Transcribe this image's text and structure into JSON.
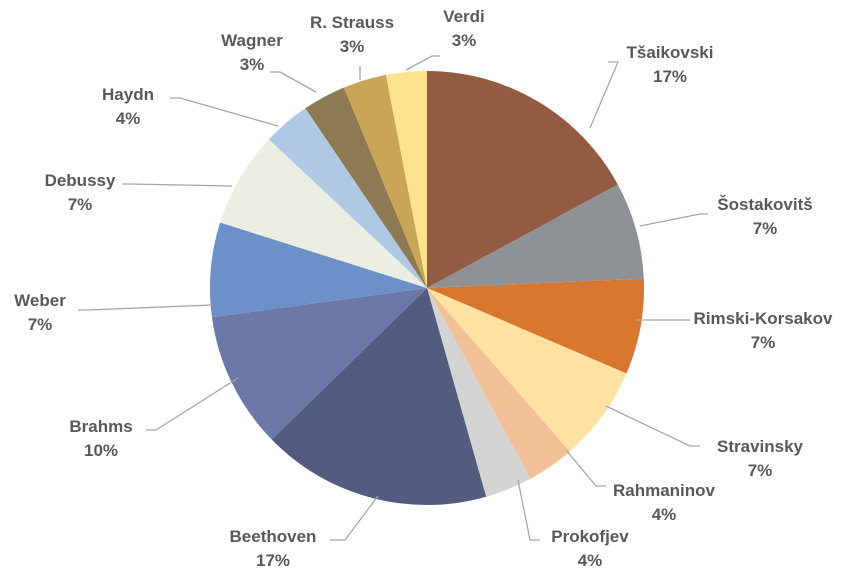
{
  "chart_data": {
    "type": "pie",
    "title": "",
    "start_angle_deg": 0,
    "direction": "clockwise",
    "legend": "none",
    "slices": [
      {
        "name": "Tšaikovski",
        "percent_label": "17%",
        "value": 17.5,
        "color": "#935B41"
      },
      {
        "name": "Šostakovitš",
        "percent_label": "7%",
        "value": 7.4,
        "color": "#8E9196"
      },
      {
        "name": "Rimski-Korsakov",
        "percent_label": "7%",
        "value": 7.3,
        "color": "#D6772D"
      },
      {
        "name": "Stravinsky",
        "percent_label": "7%",
        "value": 7.3,
        "color": "#FDE2A1"
      },
      {
        "name": "Rahmaninov",
        "percent_label": "4%",
        "value": 3.6,
        "color": "#F2C097"
      },
      {
        "name": "Prokofjev",
        "percent_label": "4%",
        "value": 3.6,
        "color": "#D4D4D4"
      },
      {
        "name": "Beethoven",
        "percent_label": "17%",
        "value": 17.5,
        "color": "#535C7E"
      },
      {
        "name": "Brahms",
        "percent_label": "10%",
        "value": 10.4,
        "color": "#6C78A8"
      },
      {
        "name": "Weber",
        "percent_label": "7%",
        "value": 7.2,
        "color": "#6C90C8"
      },
      {
        "name": "Debussy",
        "percent_label": "7%",
        "value": 7.3,
        "color": "#EBEFE2"
      },
      {
        "name": "Haydn",
        "percent_label": "4%",
        "value": 3.6,
        "color": "#AFC8E3"
      },
      {
        "name": "Wagner",
        "percent_label": "3%",
        "value": 3.3,
        "color": "#8E7A52"
      },
      {
        "name": "R. Strauss",
        "percent_label": "3%",
        "value": 3.3,
        "color": "#C9A655"
      },
      {
        "name": "Verdi",
        "percent_label": "3%",
        "value": 3.1,
        "color": "#FBE28D"
      }
    ]
  }
}
